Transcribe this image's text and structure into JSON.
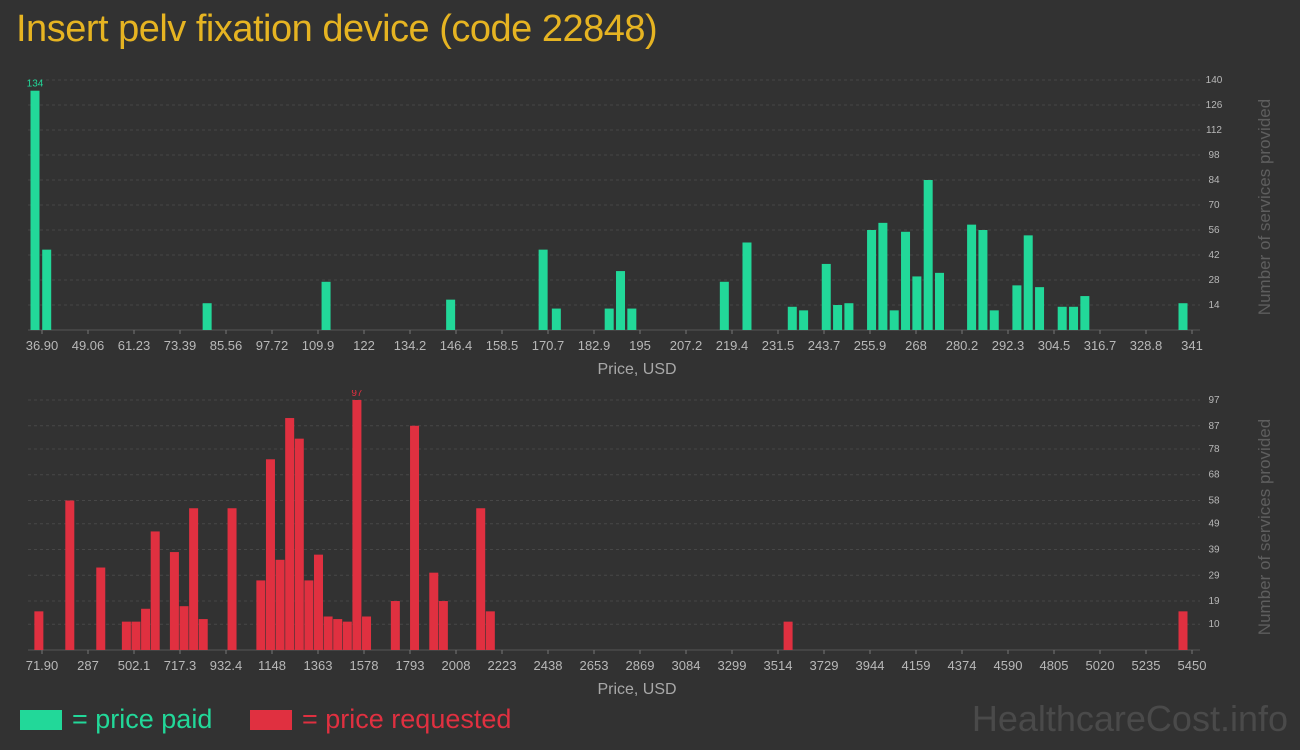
{
  "title": "Insert pelv fixation device (code 22848)",
  "legend": {
    "paid_label": "= price paid",
    "requested_label": "= price requested"
  },
  "watermark": "HealthcareCost.info",
  "colors": {
    "paid": "#22d899",
    "requested": "#e03040",
    "title": "#e6b422",
    "background": "#323232"
  },
  "chart_data": [
    {
      "type": "bar",
      "id": "price-paid",
      "xlabel": "Price, USD",
      "ylabel": "Number of services provided",
      "grid": true,
      "y_ticks": [
        14,
        28,
        42,
        56,
        70,
        84,
        98,
        112,
        126,
        140
      ],
      "ylim": [
        0,
        140
      ],
      "max_label": "134",
      "x_ticks": [
        "36.90",
        "49.06",
        "61.23",
        "73.39",
        "85.56",
        "97.72",
        "109.9",
        "122",
        "134.2",
        "146.4",
        "158.5",
        "170.7",
        "182.9",
        "195",
        "207.2",
        "219.4",
        "231.5",
        "243.7",
        "255.9",
        "268",
        "280.2",
        "292.3",
        "304.5",
        "316.7",
        "328.8",
        "341"
      ],
      "xlim": [
        36.9,
        341
      ],
      "bars": [
        {
          "x": 36.9,
          "y": 134
        },
        {
          "x": 40.0,
          "y": 45
        },
        {
          "x": 82.5,
          "y": 15
        },
        {
          "x": 114.0,
          "y": 27
        },
        {
          "x": 147.0,
          "y": 17
        },
        {
          "x": 171.5,
          "y": 45
        },
        {
          "x": 175.0,
          "y": 12
        },
        {
          "x": 189.0,
          "y": 12
        },
        {
          "x": 192.0,
          "y": 33
        },
        {
          "x": 195.0,
          "y": 12
        },
        {
          "x": 219.5,
          "y": 27
        },
        {
          "x": 225.5,
          "y": 49
        },
        {
          "x": 237.5,
          "y": 13
        },
        {
          "x": 240.5,
          "y": 11
        },
        {
          "x": 246.5,
          "y": 37
        },
        {
          "x": 249.5,
          "y": 14
        },
        {
          "x": 252.5,
          "y": 15
        },
        {
          "x": 258.5,
          "y": 56
        },
        {
          "x": 261.5,
          "y": 60
        },
        {
          "x": 264.5,
          "y": 11
        },
        {
          "x": 267.5,
          "y": 55
        },
        {
          "x": 270.5,
          "y": 30
        },
        {
          "x": 273.5,
          "y": 84
        },
        {
          "x": 276.5,
          "y": 32
        },
        {
          "x": 285.0,
          "y": 59
        },
        {
          "x": 288.0,
          "y": 56
        },
        {
          "x": 291.0,
          "y": 11
        },
        {
          "x": 297.0,
          "y": 25
        },
        {
          "x": 300.0,
          "y": 53
        },
        {
          "x": 303.0,
          "y": 24
        },
        {
          "x": 309.0,
          "y": 13
        },
        {
          "x": 312.0,
          "y": 13
        },
        {
          "x": 315.0,
          "y": 19
        },
        {
          "x": 341.0,
          "y": 15
        }
      ]
    },
    {
      "type": "bar",
      "id": "price-requested",
      "xlabel": "Price, USD",
      "ylabel": "Number of services provided",
      "grid": true,
      "y_ticks": [
        10,
        19,
        29,
        39,
        49,
        58,
        68,
        78,
        87,
        97
      ],
      "ylim": [
        0,
        97
      ],
      "max_label": "97",
      "x_ticks": [
        "71.90",
        "287",
        "502.1",
        "717.3",
        "932.4",
        "1148",
        "1363",
        "1578",
        "1793",
        "2008",
        "2223",
        "2438",
        "2653",
        "2869",
        "3084",
        "3299",
        "3514",
        "3729",
        "3944",
        "4159",
        "4374",
        "4590",
        "4805",
        "5020",
        "5235",
        "5450"
      ],
      "xlim": [
        71.9,
        5450
      ],
      "bars": [
        {
          "x": 90,
          "y": 15
        },
        {
          "x": 235,
          "y": 58
        },
        {
          "x": 380,
          "y": 32
        },
        {
          "x": 500,
          "y": 11
        },
        {
          "x": 545,
          "y": 11
        },
        {
          "x": 590,
          "y": 16
        },
        {
          "x": 635,
          "y": 46
        },
        {
          "x": 725,
          "y": 38
        },
        {
          "x": 770,
          "y": 17
        },
        {
          "x": 815,
          "y": 55
        },
        {
          "x": 860,
          "y": 12
        },
        {
          "x": 995,
          "y": 55
        },
        {
          "x": 1130,
          "y": 27
        },
        {
          "x": 1175,
          "y": 74
        },
        {
          "x": 1220,
          "y": 35
        },
        {
          "x": 1265,
          "y": 90
        },
        {
          "x": 1310,
          "y": 82
        },
        {
          "x": 1355,
          "y": 27
        },
        {
          "x": 1400,
          "y": 37
        },
        {
          "x": 1445,
          "y": 13
        },
        {
          "x": 1490,
          "y": 12
        },
        {
          "x": 1535,
          "y": 11
        },
        {
          "x": 1580,
          "y": 97
        },
        {
          "x": 1625,
          "y": 13
        },
        {
          "x": 1760,
          "y": 19
        },
        {
          "x": 1850,
          "y": 87
        },
        {
          "x": 1940,
          "y": 30
        },
        {
          "x": 1985,
          "y": 19
        },
        {
          "x": 2160,
          "y": 55
        },
        {
          "x": 2205,
          "y": 15
        },
        {
          "x": 3600,
          "y": 11
        },
        {
          "x": 5450,
          "y": 15
        }
      ]
    }
  ]
}
